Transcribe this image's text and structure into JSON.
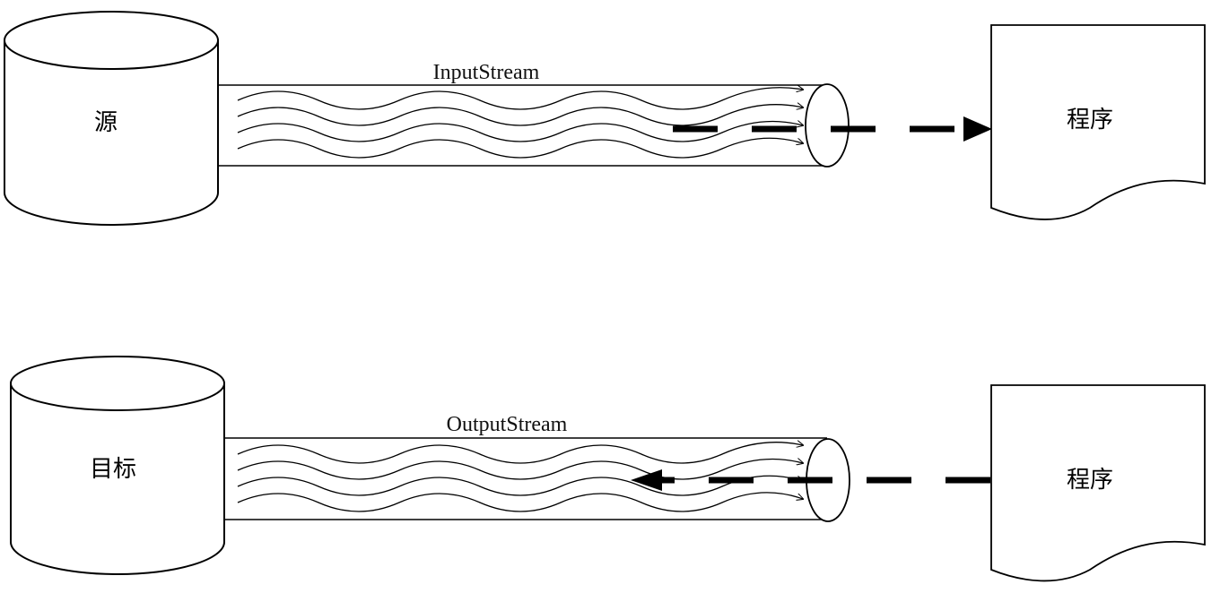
{
  "input_flow": {
    "source_label": "源",
    "stream_label": "InputStream",
    "program_label": "程序"
  },
  "output_flow": {
    "target_label": "目标",
    "stream_label": "OutputStream",
    "program_label": "程序"
  },
  "colors": {
    "stroke": "#000000",
    "background": "#ffffff"
  }
}
